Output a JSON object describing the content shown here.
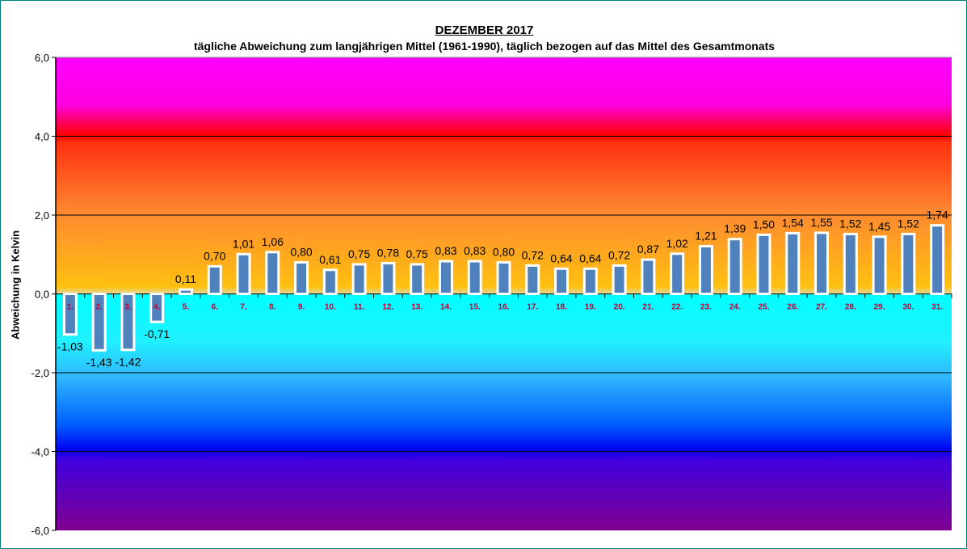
{
  "chart_data": {
    "type": "bar",
    "title": "DEZEMBER 2017",
    "subtitle": "tägliche Abweichung zum langjährigen Mittel (1961-1990), täglich bezogen auf das Mittel des Gesamtmonats",
    "xlabel": "",
    "ylabel": "Abweichung in Kelvin",
    "ylim": [
      -6,
      6
    ],
    "yticks": [
      "6,0",
      "4,0",
      "2,0",
      "0,0",
      "-2,0",
      "-4,0",
      "-6,0"
    ],
    "ytick_values": [
      6,
      4,
      2,
      0,
      -2,
      -4,
      -6
    ],
    "categories": [
      "1.",
      "2.",
      "3.",
      "4.",
      "5.",
      "6.",
      "7.",
      "8.",
      "9.",
      "10.",
      "11.",
      "12.",
      "13.",
      "14.",
      "15.",
      "16.",
      "17.",
      "18.",
      "19.",
      "20.",
      "21.",
      "22.",
      "23.",
      "24.",
      "25.",
      "26.",
      "27.",
      "28.",
      "29.",
      "30.",
      "31."
    ],
    "values": [
      -1.03,
      -1.43,
      -1.42,
      -0.71,
      0.11,
      0.7,
      1.01,
      1.06,
      0.8,
      0.61,
      0.75,
      0.78,
      0.75,
      0.83,
      0.83,
      0.8,
      0.72,
      0.64,
      0.64,
      0.72,
      0.87,
      1.02,
      1.21,
      1.39,
      1.5,
      1.54,
      1.55,
      1.52,
      1.45,
      1.52,
      1.74
    ],
    "data_labels": [
      "-1,03",
      "-1,43",
      "-1,42",
      "-0,71",
      "0,11",
      "0,70",
      "1,01",
      "1,06",
      "0,80",
      "0,61",
      "0,75",
      "0,78",
      "0,75",
      "0,83",
      "0,83",
      "0,80",
      "0,72",
      "0,64",
      "0,64",
      "0,72",
      "0,87",
      "1,02",
      "1,21",
      "1,39",
      "1,50",
      "1,54",
      "1,55",
      "1,52",
      "1,45",
      "1,52",
      "1,74"
    ],
    "grid": true,
    "legend": "none",
    "colors": {
      "bar": "#4f81bd",
      "bar_border": "#ffffff",
      "category_label": "#c0003c"
    }
  }
}
